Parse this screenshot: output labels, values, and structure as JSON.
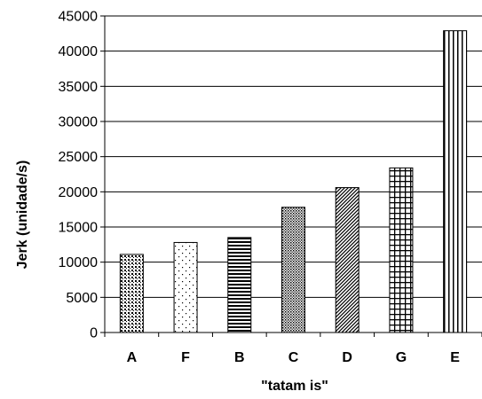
{
  "chart_data": {
    "type": "bar",
    "title": "",
    "xlabel": "\"tatam is\"",
    "ylabel": "Jerk (unidade/s)",
    "categories": [
      "A",
      "F",
      "B",
      "C",
      "D",
      "G",
      "E"
    ],
    "values": [
      11100,
      12800,
      13500,
      17800,
      20600,
      23400,
      42900
    ],
    "ylim": [
      0,
      45000
    ],
    "yticks": [
      0,
      5000,
      10000,
      15000,
      20000,
      25000,
      30000,
      35000,
      40000,
      45000
    ],
    "grid": true,
    "legend": "none",
    "bar_patterns": [
      "dots-dense",
      "dots-sparse",
      "horizontal-lines",
      "crosshatch-dense",
      "diagonal-lines",
      "grid-squares",
      "vertical-lines"
    ],
    "colors": {
      "bar_outline": "#000000",
      "bar_background": "#ffffff",
      "gridline": "#000000"
    }
  }
}
